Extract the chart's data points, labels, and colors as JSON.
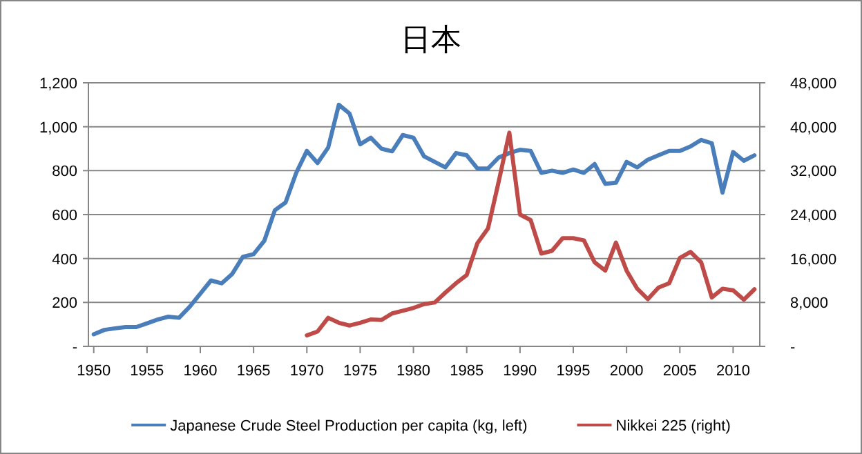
{
  "chart_data": {
    "type": "line",
    "title": "日本",
    "xlim": [
      1949.5,
      2012.5
    ],
    "xticks": [
      1950,
      1955,
      1960,
      1965,
      1970,
      1975,
      1980,
      1985,
      1990,
      1995,
      2000,
      2005,
      2010
    ],
    "ylim": [
      0,
      1200
    ],
    "yticks": [
      {
        "value": 0,
        "label": "-"
      },
      {
        "value": 200,
        "label": "200"
      },
      {
        "value": 400,
        "label": "400"
      },
      {
        "value": 600,
        "label": "600"
      },
      {
        "value": 800,
        "label": "800"
      },
      {
        "value": 1000,
        "label": "1,000"
      },
      {
        "value": 1200,
        "label": "1,200"
      }
    ],
    "y2lim": [
      0,
      48000
    ],
    "y2ticks": [
      {
        "value": 0,
        "label": "-"
      },
      {
        "value": 8000,
        "label": "8,000"
      },
      {
        "value": 16000,
        "label": "16,000"
      },
      {
        "value": 24000,
        "label": "24,000"
      },
      {
        "value": 32000,
        "label": "32,000"
      },
      {
        "value": 40000,
        "label": "40,000"
      },
      {
        "value": 48000,
        "label": "48,000"
      }
    ],
    "grid": "y",
    "legend": "bottom",
    "series": [
      {
        "name": "Japanese Crude Steel Production per capita (kg, left)",
        "color": "#4a7ebb",
        "x": [
          1950,
          1951,
          1952,
          1953,
          1954,
          1955,
          1956,
          1957,
          1958,
          1959,
          1960,
          1961,
          1962,
          1963,
          1964,
          1965,
          1966,
          1967,
          1968,
          1969,
          1970,
          1971,
          1972,
          1973,
          1974,
          1975,
          1976,
          1977,
          1978,
          1979,
          1980,
          1981,
          1982,
          1983,
          1984,
          1985,
          1986,
          1987,
          1988,
          1989,
          1990,
          1991,
          1992,
          1993,
          1994,
          1995,
          1996,
          1997,
          1998,
          1999,
          2000,
          2001,
          2002,
          2003,
          2004,
          2005,
          2006,
          2007,
          2008,
          2009,
          2010,
          2011,
          2012
        ],
        "values": [
          55,
          75,
          82,
          88,
          88,
          105,
          122,
          135,
          130,
          180,
          240,
          300,
          287,
          330,
          408,
          420,
          480,
          620,
          655,
          790,
          890,
          835,
          905,
          1100,
          1060,
          920,
          950,
          900,
          888,
          962,
          950,
          865,
          840,
          815,
          880,
          870,
          810,
          810,
          860,
          880,
          895,
          890,
          790,
          800,
          790,
          805,
          790,
          830,
          740,
          745,
          840,
          815,
          850,
          870,
          890,
          890,
          910,
          940,
          925,
          700,
          885,
          845,
          870
        ]
      },
      {
        "name": "Nikkei 225 (right)",
        "color": "#be4b48",
        "axis": "y2",
        "x": [
          1970,
          1971,
          1972,
          1973,
          1974,
          1975,
          1976,
          1977,
          1978,
          1979,
          1980,
          1981,
          1982,
          1983,
          1984,
          1985,
          1986,
          1987,
          1988,
          1989,
          1990,
          1991,
          1992,
          1993,
          1994,
          1995,
          1996,
          1997,
          1998,
          1999,
          2000,
          2001,
          2002,
          2003,
          2004,
          2005,
          2006,
          2007,
          2008,
          2009,
          2010,
          2011,
          2012
        ],
        "values": [
          2000,
          2700,
          5200,
          4300,
          3800,
          4300,
          4900,
          4800,
          6000,
          6500,
          7000,
          7700,
          8000,
          9800,
          11500,
          13000,
          18800,
          21500,
          30000,
          38900,
          24000,
          23000,
          16900,
          17400,
          19700,
          19700,
          19300,
          15300,
          13800,
          18900,
          13800,
          10500,
          8600,
          10700,
          11500,
          16100,
          17200,
          15300,
          8900,
          10500,
          10200,
          8500,
          10400
        ]
      }
    ]
  }
}
